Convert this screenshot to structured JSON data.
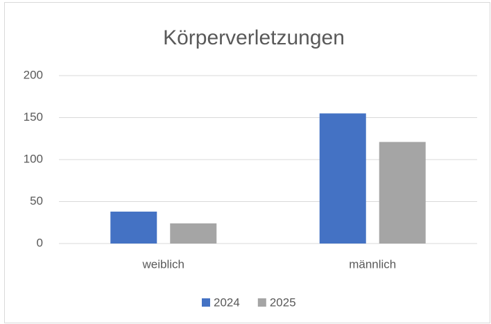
{
  "chart_data": {
    "type": "bar",
    "title": "Körperverletzungen",
    "categories": [
      "weiblich",
      "männlich"
    ],
    "series": [
      {
        "name": "2024",
        "color": "#4472c4",
        "values": [
          38,
          155
        ]
      },
      {
        "name": "2025",
        "color": "#a5a5a5",
        "values": [
          24,
          121
        ]
      }
    ],
    "ylim": [
      0,
      200
    ],
    "yticks": [
      0,
      50,
      100,
      150,
      200
    ],
    "grid": true,
    "legend": "bottom"
  }
}
